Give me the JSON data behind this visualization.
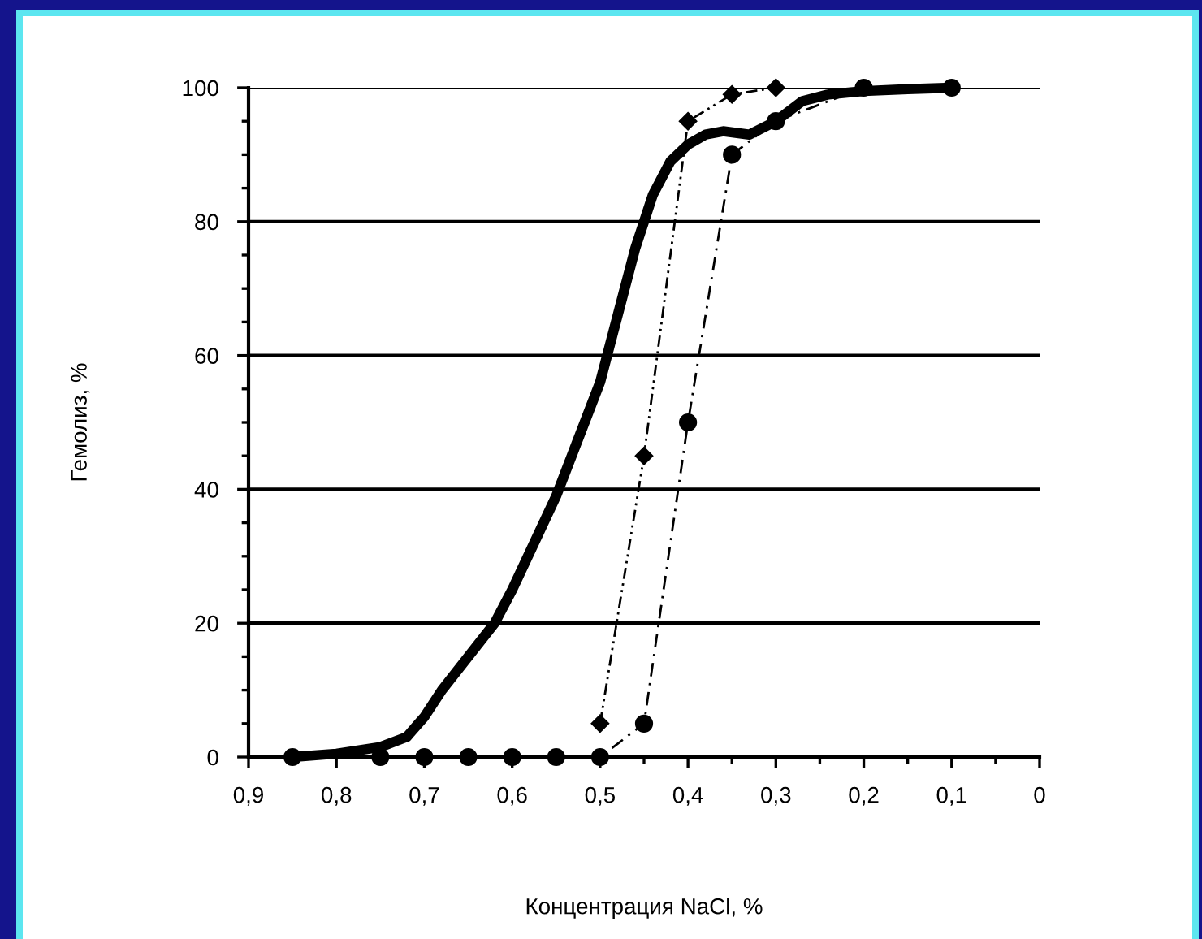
{
  "chart_data": {
    "type": "line",
    "xlabel": "Концентрация NaCl, %",
    "ylabel": "Гемолиз, %",
    "xlim": [
      0.9,
      0
    ],
    "ylim": [
      0,
      100
    ],
    "xticks": [
      {
        "value": 0.9,
        "label": "0,9"
      },
      {
        "value": 0.85,
        "label": null
      },
      {
        "value": 0.8,
        "label": "0,8"
      },
      {
        "value": 0.75,
        "label": null
      },
      {
        "value": 0.7,
        "label": "0,7"
      },
      {
        "value": 0.65,
        "label": null
      },
      {
        "value": 0.6,
        "label": "0,6"
      },
      {
        "value": 0.55,
        "label": null
      },
      {
        "value": 0.5,
        "label": "0,5"
      },
      {
        "value": 0.45,
        "label": null
      },
      {
        "value": 0.4,
        "label": "0,4"
      },
      {
        "value": 0.35,
        "label": null
      },
      {
        "value": 0.3,
        "label": "0,3"
      },
      {
        "value": 0.25,
        "label": null
      },
      {
        "value": 0.2,
        "label": "0,2"
      },
      {
        "value": 0.15,
        "label": null
      },
      {
        "value": 0.1,
        "label": "0,1"
      },
      {
        "value": 0.05,
        "label": null
      },
      {
        "value": 0,
        "label": "0"
      }
    ],
    "yticks": [
      0,
      {
        "value": 5,
        "label": null
      },
      {
        "value": 10,
        "label": null
      },
      {
        "value": 15,
        "label": null
      },
      20,
      {
        "value": 25,
        "label": null
      },
      {
        "value": 30,
        "label": null
      },
      {
        "value": 35,
        "label": null
      },
      40,
      {
        "value": 45,
        "label": null
      },
      {
        "value": 50,
        "label": null
      },
      {
        "value": 55,
        "label": null
      },
      60,
      {
        "value": 65,
        "label": null
      },
      {
        "value": 70,
        "label": null
      },
      {
        "value": 75,
        "label": null
      },
      80,
      {
        "value": 85,
        "label": null
      },
      {
        "value": 90,
        "label": null
      },
      {
        "value": 95,
        "label": null
      },
      100
    ],
    "grid": "y",
    "legend": false,
    "series": [
      {
        "color": "#000000",
        "marker": "none",
        "line_style": "solid",
        "x": [
          0.85,
          0.8,
          0.75,
          0.72,
          0.7,
          0.68,
          0.65,
          0.62,
          0.6,
          0.55,
          0.5,
          0.48,
          0.46,
          0.44,
          0.42,
          0.4,
          0.38,
          0.36,
          0.33,
          0.3,
          0.27,
          0.24,
          0.2,
          0.15,
          0.1
        ],
        "values": [
          0,
          0.5,
          1.5,
          3,
          6,
          10,
          15,
          20,
          25,
          39,
          56,
          66,
          76,
          84,
          89,
          91.5,
          93,
          93.5,
          93,
          95,
          98,
          99,
          99.5,
          99.8,
          100
        ]
      },
      {
        "color": "#000000",
        "marker": "diamond",
        "line_style": "dotted",
        "x": [
          0.5,
          0.45,
          0.4,
          0.35,
          0.3
        ],
        "values": [
          5,
          45,
          95,
          99,
          100
        ]
      },
      {
        "color": "#000000",
        "marker": "circle",
        "line_style": "dashed",
        "x": [
          0.85,
          0.75,
          0.7,
          0.65,
          0.6,
          0.55,
          0.5,
          0.45,
          0.4,
          0.35,
          0.3,
          0.2,
          0.1
        ],
        "values": [
          0,
          0,
          0,
          0,
          0,
          0,
          0,
          5,
          50,
          90,
          95,
          100,
          100
        ]
      }
    ]
  }
}
